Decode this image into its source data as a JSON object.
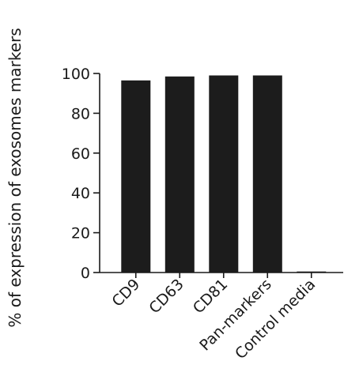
{
  "chart_data": {
    "type": "bar",
    "title": "",
    "xlabel": "",
    "ylabel": "% of expression of exosomes markers",
    "categories": [
      "CD9",
      "CD63",
      "CD81",
      "Pan-markers",
      "Control media"
    ],
    "values": [
      96.5,
      98.5,
      99,
      99,
      0.5
    ],
    "ylim": [
      0,
      100
    ],
    "yticks": [
      "0",
      "20",
      "40",
      "60",
      "80",
      "100"
    ],
    "grid": false,
    "bar_color": "#1c1c1c",
    "axis_color": "#1a1a1a"
  }
}
